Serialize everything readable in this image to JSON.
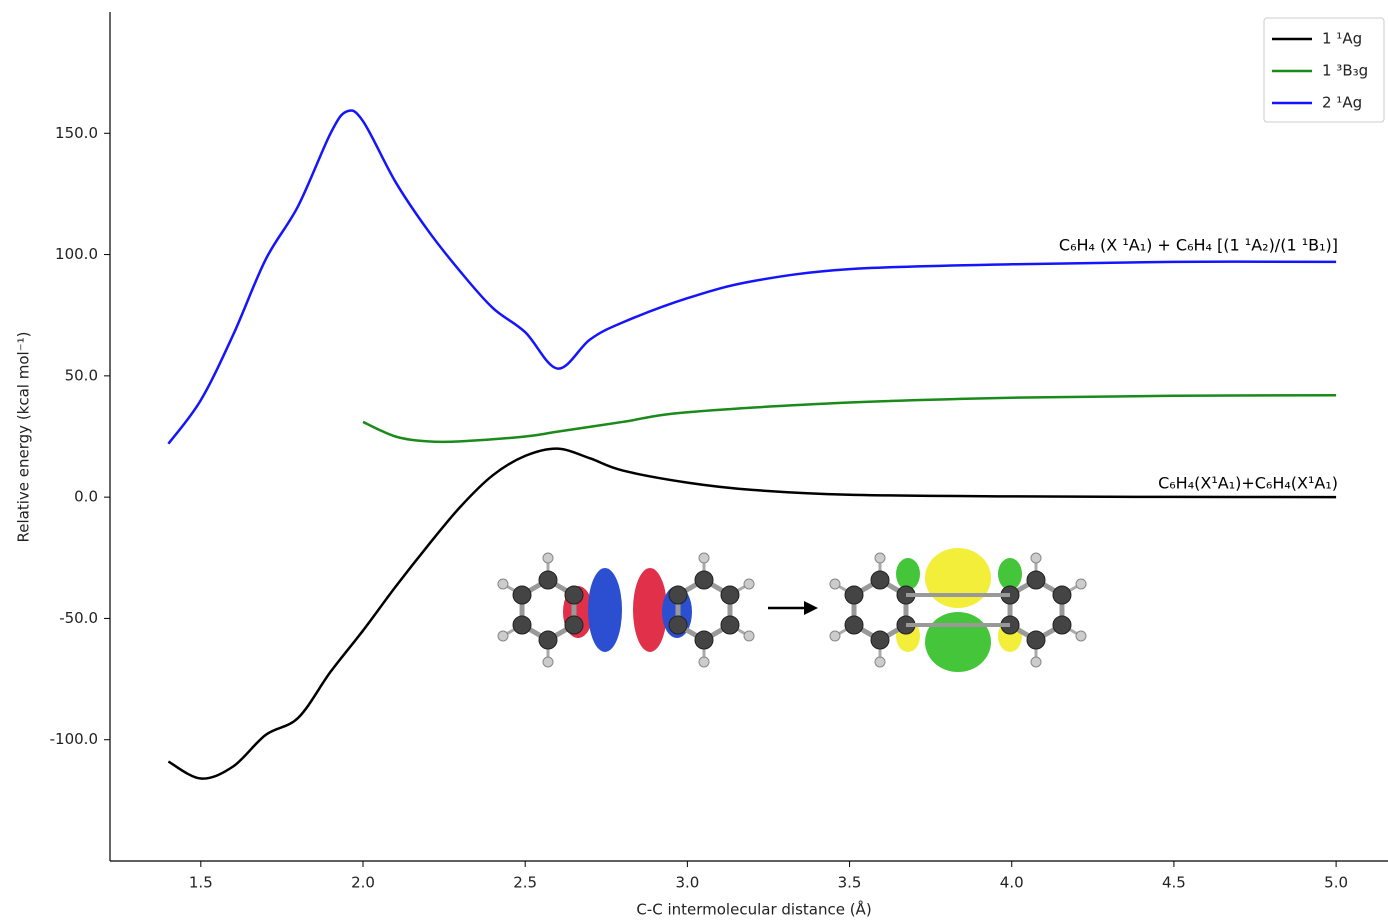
{
  "chart_data": {
    "type": "line",
    "xlabel": "C-C intermolecular distance (Å)",
    "ylabel": "Relative energy (kcal mol⁻¹)",
    "xlim": [
      1.22,
      5.16
    ],
    "ylim": [
      -150,
      200
    ],
    "xticks": [
      1.5,
      {
        "value": 2,
        "label": "2.0"
      },
      2.5,
      {
        "value": 3,
        "label": "3.0"
      },
      3.5,
      {
        "value": 4,
        "label": "4.0"
      },
      4.5,
      {
        "value": 5,
        "label": "5.0"
      }
    ],
    "yticks": [
      {
        "value": -100,
        "label": "-100.0"
      },
      {
        "value": -50,
        "label": "-50.0"
      },
      {
        "value": 0,
        "label": "0.0"
      },
      {
        "value": 50,
        "label": "50.0"
      },
      {
        "value": 100,
        "label": "100.0"
      },
      {
        "value": 150,
        "label": "150.0"
      }
    ],
    "legend": "upper right",
    "series": [
      {
        "name": "1 ¹Ag",
        "color": "#000000",
        "x": [
          1.4,
          1.5,
          1.6,
          1.7,
          1.8,
          1.9,
          2.0,
          2.1,
          2.2,
          2.3,
          2.4,
          2.5,
          2.6,
          2.7,
          2.8,
          3.0,
          3.2,
          3.5,
          4.0,
          4.5,
          5.0
        ],
        "values": [
          -109,
          -116,
          -111,
          -98,
          -91,
          -72,
          -55,
          -37,
          -20,
          -4,
          9,
          17,
          20,
          16,
          11,
          6,
          3,
          1,
          0.3,
          0.1,
          0
        ]
      },
      {
        "name": "1 ³B₃g",
        "color": "#1a8a1a",
        "x": [
          2.0,
          2.1,
          2.2,
          2.3,
          2.5,
          2.6,
          2.8,
          3.0,
          3.5,
          4.0,
          4.5,
          5.0
        ],
        "values": [
          31,
          25,
          23,
          23,
          25,
          27,
          31,
          35,
          39,
          41,
          41.8,
          42
        ]
      },
      {
        "name": "2 ¹Ag",
        "color": "#1414ff",
        "x": [
          1.4,
          1.5,
          1.6,
          1.7,
          1.8,
          1.9,
          1.95,
          2.0,
          2.1,
          2.2,
          2.3,
          2.4,
          2.5,
          2.6,
          2.7,
          2.8,
          3.0,
          3.2,
          3.5,
          4.0,
          4.5,
          5.0
        ],
        "values": [
          22,
          40,
          67,
          98,
          120,
          150,
          159,
          155,
          130,
          110,
          93,
          78,
          68,
          53,
          65,
          72,
          82,
          89,
          94,
          96,
          97,
          97
        ]
      }
    ],
    "annotations": [
      "C₆H₄ (X ¹A₁) + C₆H₄ [(1 ¹A₂)/(1 ¹B₁)]",
      "C₆H₄(X¹A₁)+C₆H₄(X¹A₁)"
    ]
  }
}
